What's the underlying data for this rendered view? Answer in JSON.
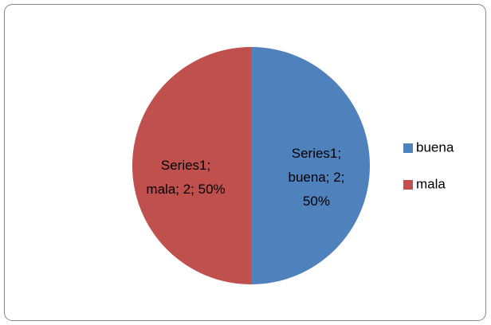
{
  "chart_data": {
    "type": "pie",
    "series": [
      {
        "name": "Series1",
        "values": [
          2,
          2
        ],
        "value_labels": [
          "Series1; buena; 2; 50%",
          "Series1; mala; 2; 50%"
        ]
      }
    ],
    "categories": [
      "buena",
      "mala"
    ],
    "colors": [
      "#4f81bd",
      "#c0504d"
    ],
    "legend": "right"
  }
}
